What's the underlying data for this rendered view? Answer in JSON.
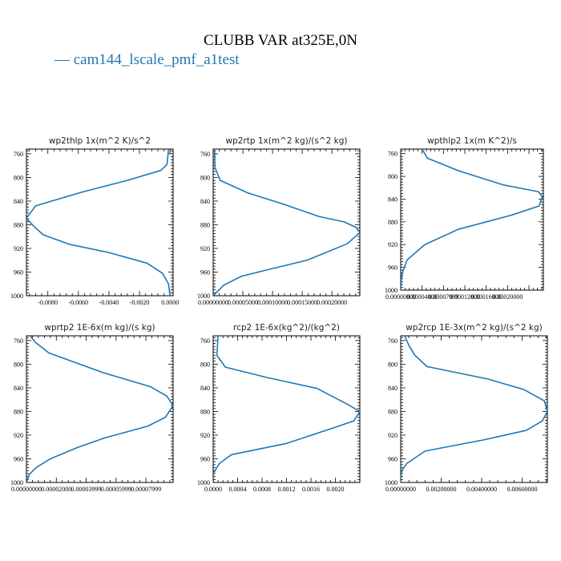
{
  "figure": {
    "title": "CLUBB VAR at325E,0N",
    "legend": {
      "label": "— cam144_lscale_pmf_a1test",
      "color": "#1f77b4"
    }
  },
  "chart_data": [
    {
      "type": "line",
      "title": "wp2thlp   1x(m^2 K)/s^2",
      "xlim": [
        -0.0094,
        0.0002
      ],
      "ylim": [
        1000,
        752
      ],
      "x_ticks": [
        -0.008,
        -0.006,
        -0.004,
        -0.002,
        0.0
      ],
      "x_tick_labels": [
        "-0.0080",
        "-0.0060",
        "-0.0040",
        "-0.0020",
        "0.0000"
      ],
      "y_ticks": [
        760,
        800,
        840,
        880,
        920,
        960,
        1000
      ],
      "y_tick_labels": [
        "760",
        "800",
        "840",
        "880",
        "920",
        "960",
        "1000"
      ],
      "series": [
        {
          "x": [
            -0.0001,
            -0.0002,
            -0.0006,
            -0.0028,
            -0.0058,
            -0.0088,
            -0.0094,
            -0.0089,
            -0.0083,
            -0.0066,
            -0.004,
            -0.0015,
            -0.0005,
            -0.0001,
            0.0
          ],
          "y": [
            752,
            778,
            788,
            805,
            825,
            848,
            869,
            883,
            897,
            913,
            927,
            945,
            962,
            980,
            1000
          ]
        }
      ]
    },
    {
      "type": "line",
      "title": "wp2rtp   1x(m^2 kg)/(s^2 kg)",
      "xlim": [
        0.0,
        0.000247
      ],
      "ylim": [
        1000,
        752
      ],
      "x_ticks": [
        0.0,
        5e-05,
        0.0001,
        0.00015,
        0.0002
      ],
      "x_tick_labels": [
        "0.00000000",
        "0.00005000",
        "0.00010000",
        "0.00015000",
        "0.00020000"
      ],
      "y_ticks": [
        760,
        800,
        840,
        880,
        920,
        960,
        1000
      ],
      "y_tick_labels": [
        "760",
        "800",
        "840",
        "880",
        "920",
        "960",
        "1000"
      ],
      "series": [
        {
          "x": [
            2.5e-06,
            3e-06,
            1.2e-05,
            5.8e-05,
            0.000118,
            0.000178,
            0.00022,
            0.00024,
            0.000247,
            0.000226,
            0.000158,
            8.8e-05,
            4.8e-05,
            1.8e-05,
            0.0
          ],
          "y": [
            752,
            783,
            805,
            826,
            845,
            866,
            875,
            884,
            893,
            912,
            940,
            957,
            967,
            982,
            1000
          ]
        }
      ]
    },
    {
      "type": "line",
      "title": "wpthlp2   1x(m K^2)/s",
      "xlim": [
        0.0,
        0.000267
      ],
      "ylim": [
        1000,
        752
      ],
      "x_ticks": [
        0.0,
        4e-05,
        8e-05,
        0.00012,
        0.00016,
        0.0002
      ],
      "x_tick_labels": [
        "0.00000000",
        "0.00004000",
        "0.00007999",
        "0.00012000",
        "0.00016000",
        "0.00020000"
      ],
      "y_ticks": [
        760,
        800,
        840,
        880,
        920,
        960,
        1000
      ],
      "y_tick_labels": [
        "760",
        "800",
        "840",
        "880",
        "920",
        "960",
        "1000"
      ],
      "series": [
        {
          "x": [
            4e-05,
            5e-05,
            0.000108,
            0.000192,
            0.000258,
            0.000265,
            0.000259,
            0.000208,
            0.000108,
            4.5e-05,
            1.2e-05,
            4.5e-06,
            1e-06,
            0.0
          ],
          "y": [
            752,
            768,
            790,
            815,
            827,
            836,
            852,
            868,
            893,
            920,
            947,
            966,
            980,
            1000
          ]
        }
      ]
    },
    {
      "type": "line",
      "title": "wprtp2   1E-6x(m kg)/(s kg)",
      "xlim": [
        0.0,
        9.82e-05
      ],
      "ylim": [
        1000,
        752
      ],
      "x_ticks": [
        0.0,
        2e-05,
        4e-05,
        6e-05,
        8e-05
      ],
      "x_tick_labels": [
        "0.00000000",
        "0.00002000",
        "0.00003999",
        "0.00005999",
        "0.00007999"
      ],
      "y_ticks": [
        760,
        800,
        840,
        880,
        920,
        960,
        1000
      ],
      "y_tick_labels": [
        "760",
        "800",
        "840",
        "880",
        "920",
        "960",
        "1000"
      ],
      "series": [
        {
          "x": [
            2.5e-06,
            6e-06,
            1.5e-05,
            5.1e-05,
            8.3e-05,
            9.4e-05,
            9.82e-05,
            9.3e-05,
            8.1e-05,
            5.2e-05,
            3.4e-05,
            1.6e-05,
            7e-06,
            2e-06,
            0.0
          ],
          "y": [
            752,
            763,
            781,
            814,
            838,
            854,
            870,
            890,
            905,
            925,
            941,
            960,
            974,
            986,
            1000
          ]
        }
      ]
    },
    {
      "type": "line",
      "title": "rcp2   1E-6x(kg^2)/(kg^2)",
      "xlim": [
        0.0,
        0.0024
      ],
      "ylim": [
        1000,
        752
      ],
      "x_ticks": [
        0.0,
        0.0004,
        0.0008,
        0.0012,
        0.0016,
        0.002
      ],
      "x_tick_labels": [
        "0.0000",
        "0.0004",
        "0.0008",
        "0.0012",
        "0.0016",
        "0.0020"
      ],
      "y_ticks": [
        760,
        800,
        840,
        880,
        920,
        960,
        1000
      ],
      "y_tick_labels": [
        "760",
        "800",
        "840",
        "880",
        "920",
        "960",
        "1000"
      ],
      "series": [
        {
          "x": [
            8e-05,
            7e-05,
            6e-05,
            0.0002,
            0.0009,
            0.0017,
            0.0022,
            0.0024,
            0.0023,
            0.0019,
            0.0012,
            0.0003,
            0.0001,
            0.0
          ],
          "y": [
            752,
            768,
            785,
            805,
            823,
            841,
            868,
            880,
            896,
            910,
            934,
            953,
            968,
            985
          ]
        }
      ]
    },
    {
      "type": "line",
      "title": "wp2rcp   1E-3x(m^2 kg)/(s^2 kg)",
      "xlim": [
        0.0,
        0.00725
      ],
      "ylim": [
        1000,
        752
      ],
      "x_ticks": [
        0.0,
        0.002,
        0.004,
        0.006
      ],
      "x_tick_labels": [
        "0.00000000",
        "0.00200000",
        "0.00400000",
        "0.00600000"
      ],
      "y_ticks": [
        760,
        800,
        840,
        880,
        920,
        960,
        1000
      ],
      "y_tick_labels": [
        "760",
        "800",
        "840",
        "880",
        "920",
        "960",
        "1000"
      ],
      "series": [
        {
          "x": [
            0.0002,
            0.0004,
            0.0007,
            0.0013,
            0.0043,
            0.0061,
            0.0071,
            0.00725,
            0.007,
            0.0062,
            0.0041,
            0.0012,
            0.0003,
            5e-05,
            0.0
          ],
          "y": [
            752,
            768,
            785,
            804,
            825,
            843,
            862,
            880,
            896,
            912,
            928,
            947,
            968,
            980,
            992
          ]
        }
      ]
    }
  ]
}
